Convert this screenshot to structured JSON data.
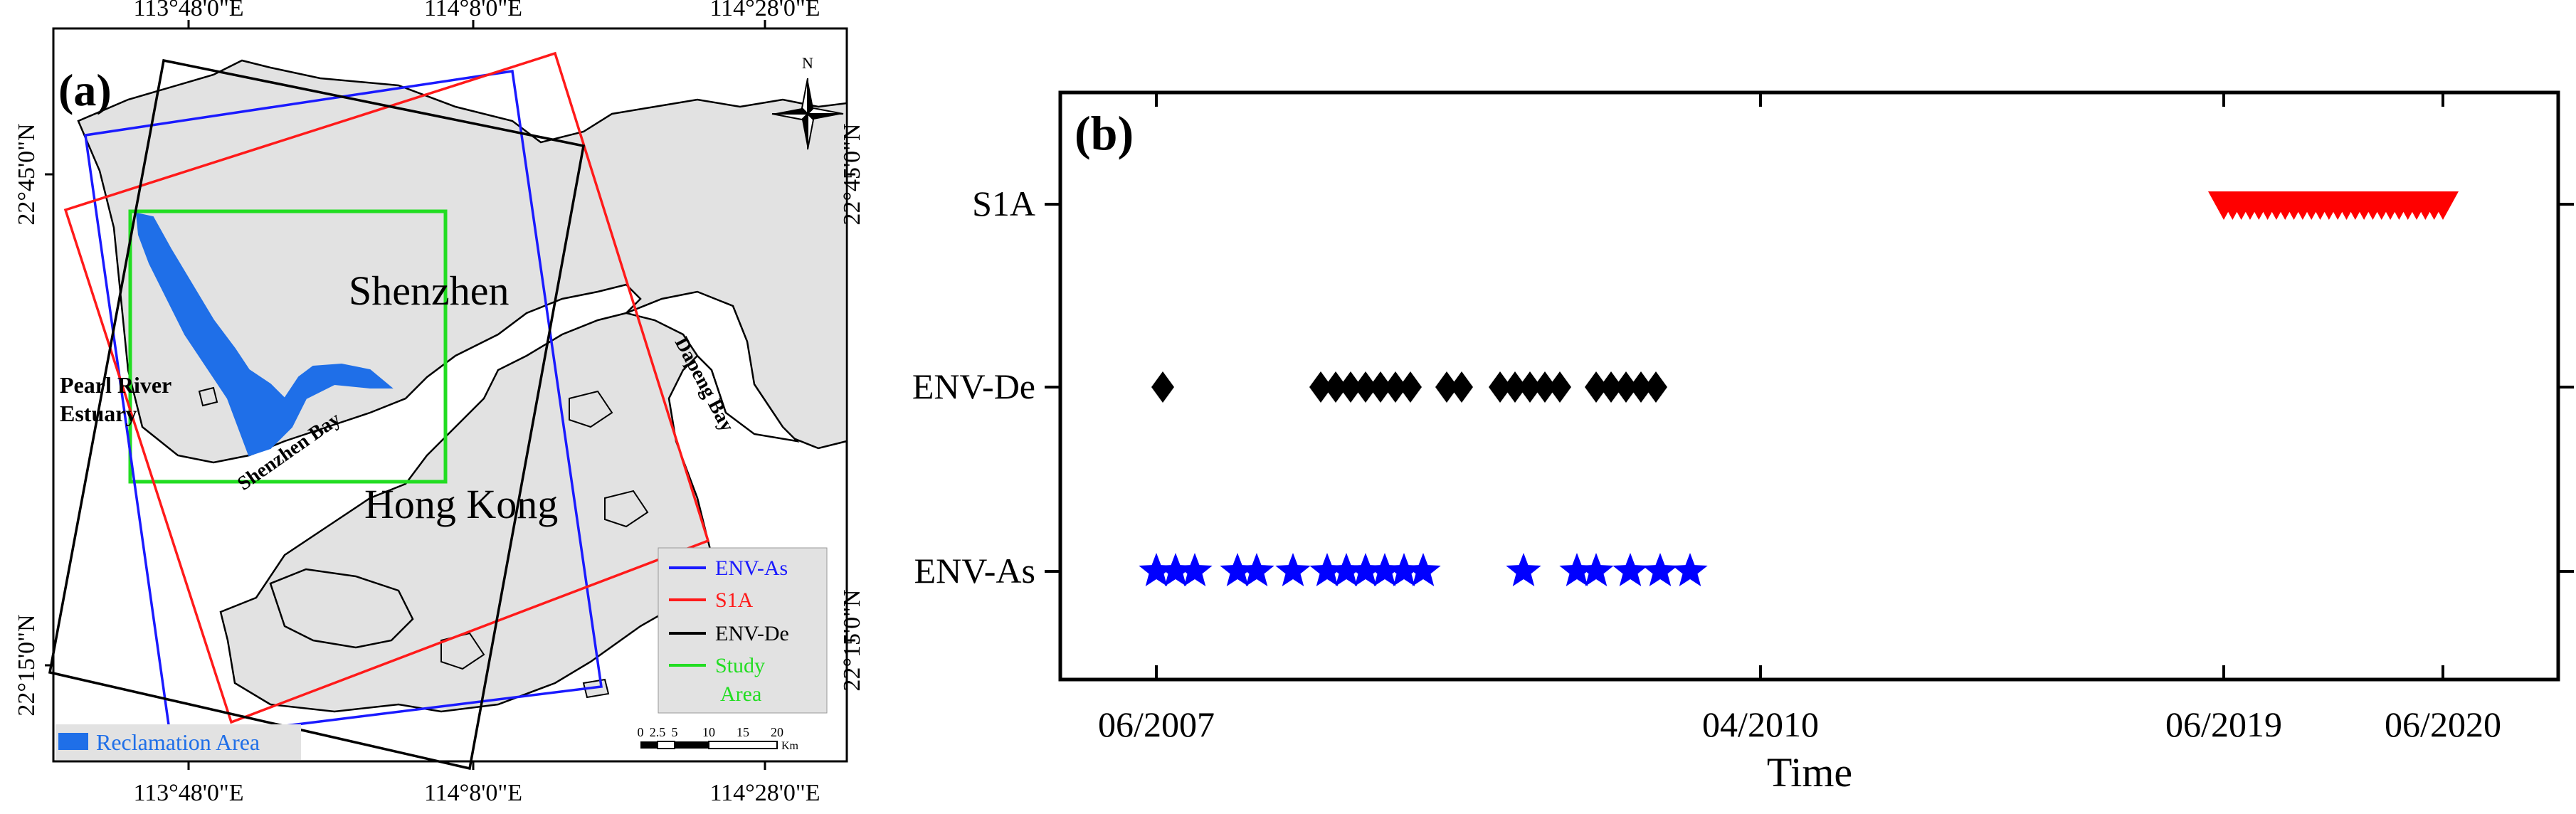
{
  "map": {
    "panel_label": "(a)",
    "top_ticks": [
      "113°48'0\"E",
      "114°8'0\"E",
      "114°28'0\"E"
    ],
    "bottom_ticks": [
      "113°48'0\"E",
      "114°8'0\"E",
      "114°28'0\"E"
    ],
    "left_ticks": [
      "22°45'0\"N",
      "22°15'0\"N"
    ],
    "right_ticks": [
      "22°45'0\"N",
      "22°15'0\"N"
    ],
    "place_labels": {
      "shenzhen": "Shenzhen",
      "hong_kong": "Hong Kong",
      "pearl_river_line1": "Pearl River",
      "pearl_river_line2": "Estuary",
      "shenzhen_bay": "Shenzhen Bay",
      "dapeng_bay": "Dapeng Bay"
    },
    "north_label": "N",
    "legend": [
      {
        "label": "ENV-As",
        "color": "#1a1aff"
      },
      {
        "label": "S1A",
        "color": "#ff1a1a"
      },
      {
        "label": "ENV-De",
        "color": "#000000"
      },
      {
        "label_line1": "Study",
        "label_line2": "Area",
        "color": "#22dd22"
      }
    ],
    "reclamation_label": "Reclamation Area",
    "reclamation_color": "#1f6fe8",
    "scale_ticks": [
      "0",
      "2.5",
      "5",
      "10",
      "15",
      "20"
    ],
    "scale_unit": "Km"
  },
  "chart_data": {
    "type": "scatter",
    "panel_label": "(b)",
    "xlabel": "Time",
    "x_ticks": [
      "06/2007",
      "04/2010",
      "06/2019",
      "06/2020"
    ],
    "categories": [
      "S1A",
      "ENV-De",
      "ENV-As"
    ],
    "series": [
      {
        "name": "S1A",
        "marker": "triangle-down",
        "color": "#ff0000",
        "x": [
          0.0,
          0.04,
          0.08,
          0.12,
          0.16,
          0.2,
          0.24,
          0.28,
          0.32,
          0.36,
          0.4,
          0.44,
          0.48,
          0.52,
          0.56,
          0.6,
          0.64,
          0.68,
          0.72,
          0.76,
          0.8,
          0.84,
          0.88,
          0.92,
          0.96,
          1.0
        ]
      },
      {
        "name": "ENV-De",
        "marker": "diamond",
        "color": "#000000",
        "x": [
          0.03,
          0.77,
          0.84,
          0.91,
          0.98,
          1.05,
          1.12,
          1.19,
          1.36,
          1.43,
          1.61,
          1.68,
          1.75,
          1.82,
          1.89,
          2.06,
          2.13,
          2.2,
          2.27,
          2.34
        ]
      },
      {
        "name": "ENV-As",
        "marker": "star",
        "color": "#0000ff",
        "x": [
          0.0,
          0.09,
          0.18,
          0.38,
          0.47,
          0.64,
          0.8,
          0.89,
          0.98,
          1.07,
          1.16,
          1.25,
          1.72,
          1.97,
          2.06,
          2.22,
          2.36,
          2.5
        ]
      }
    ]
  }
}
